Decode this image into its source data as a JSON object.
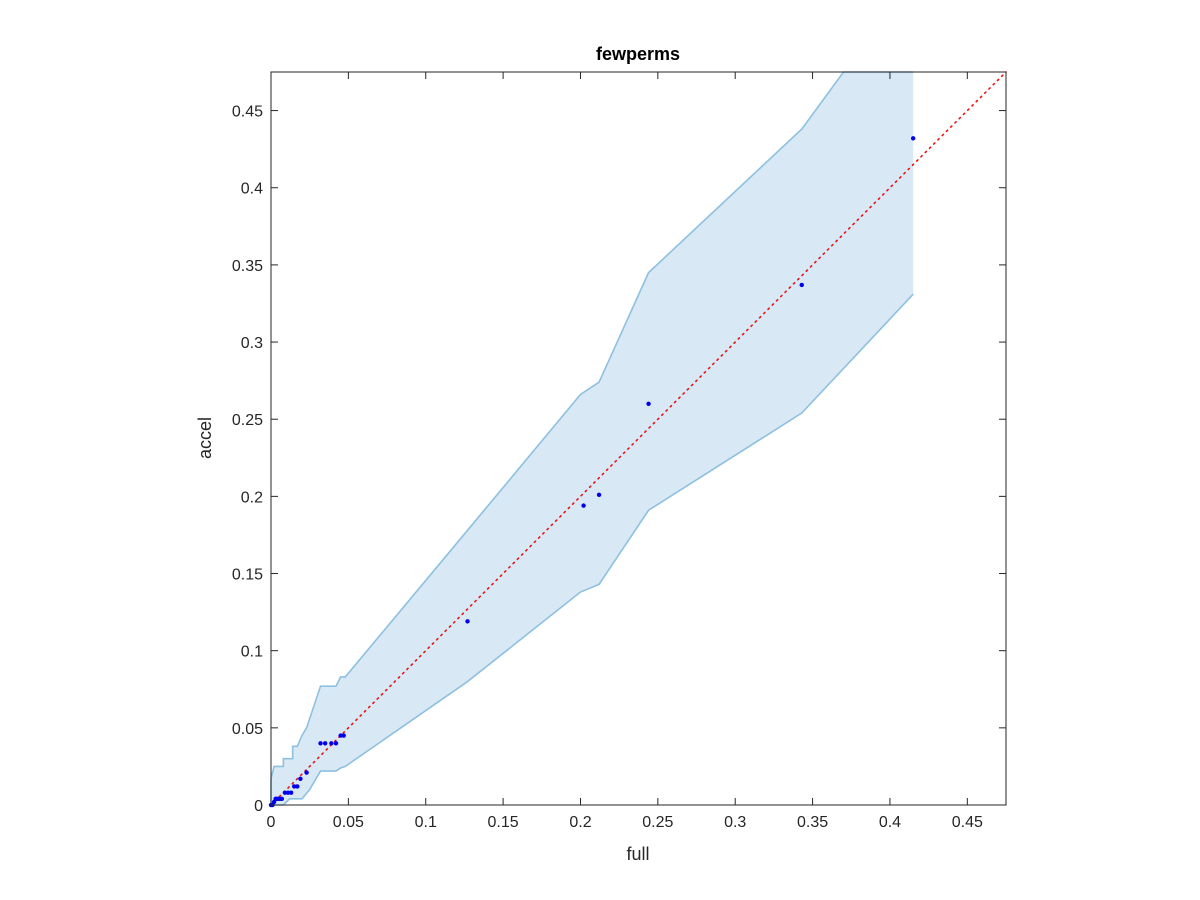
{
  "chart_data": {
    "type": "scatter",
    "title": "fewperms",
    "xlabel": "full",
    "ylabel": "accel",
    "xlim": [
      0,
      0.475
    ],
    "ylim": [
      0,
      0.475
    ],
    "xticks": [
      0,
      0.05,
      0.1,
      0.15,
      0.2,
      0.25,
      0.3,
      0.35,
      0.4,
      0.45
    ],
    "yticks": [
      0,
      0.05,
      0.1,
      0.15,
      0.2,
      0.25,
      0.3,
      0.35,
      0.4,
      0.45
    ],
    "xtick_labels": [
      "0",
      "0.05",
      "0.1",
      "0.15",
      "0.2",
      "0.25",
      "0.3",
      "0.35",
      "0.4",
      "0.45"
    ],
    "ytick_labels": [
      "0",
      "0.05",
      "0.1",
      "0.15",
      "0.2",
      "0.25",
      "0.3",
      "0.35",
      "0.4",
      "0.45"
    ],
    "grid": false,
    "colors": {
      "points": "#0000ee",
      "band_fill": "#d8e8f5",
      "band_edge": "#8ec0e0",
      "reference_line": "#ee1111"
    },
    "points": {
      "x": [
        0,
        0.001,
        0.002,
        0.003,
        0.004,
        0.005,
        0.006,
        0.007,
        0.009,
        0.011,
        0.013,
        0.015,
        0.017,
        0.019,
        0.023,
        0.032,
        0.035,
        0.039,
        0.042,
        0.045,
        0.047,
        0.127,
        0.202,
        0.212,
        0.244,
        0.343,
        0.415
      ],
      "y": [
        0,
        0,
        0.002,
        0.004,
        0.004,
        0.004,
        0.004,
        0.004,
        0.008,
        0.008,
        0.008,
        0.012,
        0.012,
        0.017,
        0.021,
        0.04,
        0.04,
        0.04,
        0.04,
        0.045,
        0.045,
        0.119,
        0.194,
        0.201,
        0.26,
        0.337,
        0.432
      ]
    },
    "band_upper": {
      "x": [
        0,
        0,
        0.002,
        0.008,
        0.008,
        0.014,
        0.014,
        0.017,
        0.02,
        0.023,
        0.032,
        0.042,
        0.045,
        0.048,
        0.127,
        0.2,
        0.212,
        0.244,
        0.343,
        0.37,
        0.415,
        0.415
      ],
      "y": [
        0,
        0.017,
        0.025,
        0.025,
        0.03,
        0.03,
        0.038,
        0.038,
        0.045,
        0.05,
        0.077,
        0.077,
        0.083,
        0.083,
        0.178,
        0.266,
        0.274,
        0.345,
        0.438,
        0.475,
        0.475,
        0.475
      ]
    },
    "band_lower": {
      "x": [
        0,
        0.008,
        0.012,
        0.02,
        0.025,
        0.032,
        0.042,
        0.045,
        0.048,
        0.127,
        0.2,
        0.212,
        0.244,
        0.343,
        0.415
      ],
      "y": [
        0,
        0,
        0.004,
        0.004,
        0.01,
        0.022,
        0.022,
        0.024,
        0.025,
        0.08,
        0.138,
        0.143,
        0.191,
        0.254,
        0.331
      ]
    },
    "reference_line": {
      "x": [
        0,
        0.475
      ],
      "y": [
        0,
        0.475
      ]
    }
  }
}
